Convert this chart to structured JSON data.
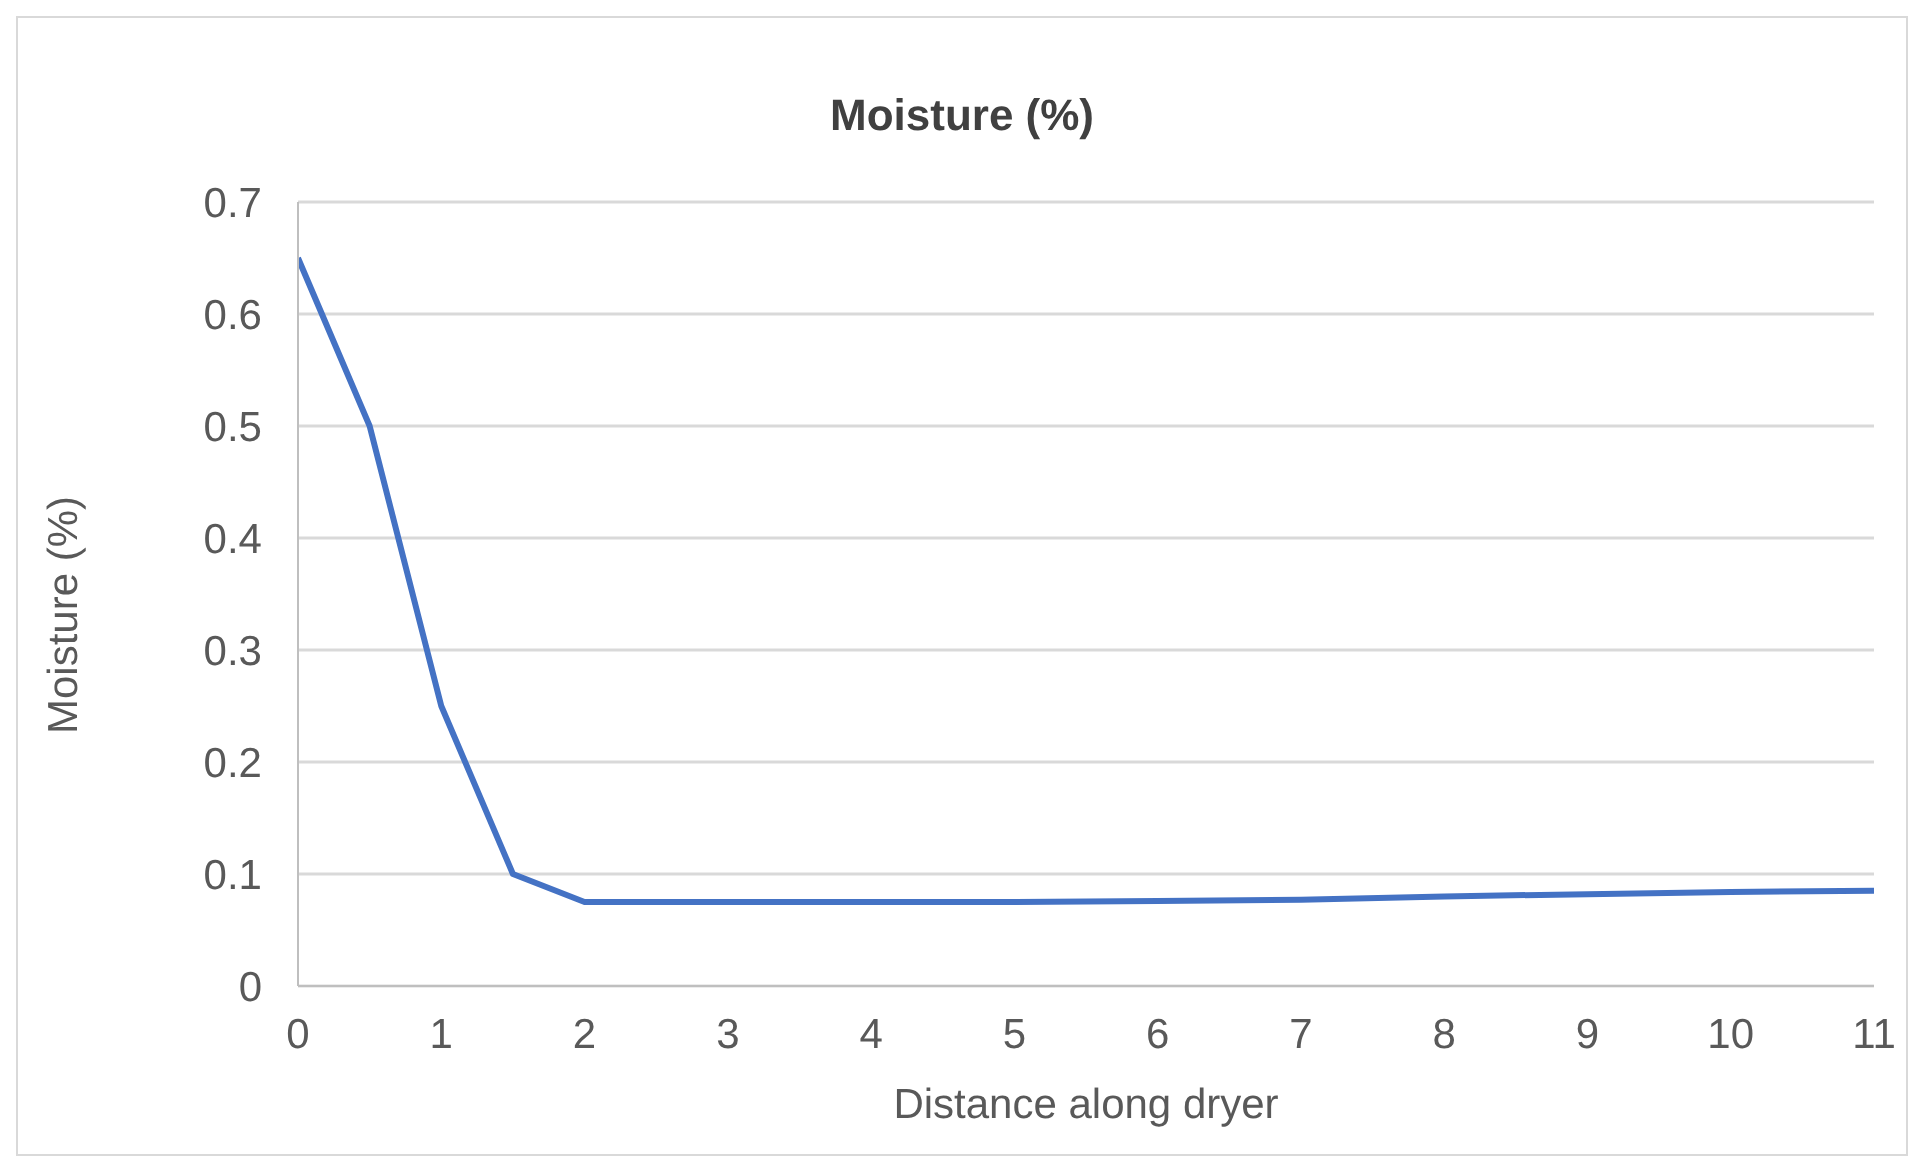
{
  "chart_data": {
    "type": "line",
    "title": "Moisture (%)",
    "xlabel": "Distance along dryer",
    "ylabel": "Moisture (%)",
    "x": [
      0,
      0.5,
      1,
      1.5,
      2,
      3,
      4,
      5,
      6,
      7,
      8,
      9,
      10,
      11
    ],
    "series": [
      {
        "color": "#4472c4",
        "values": [
          0.65,
          0.5,
          0.25,
          0.1,
          0.075,
          0.075,
          0.075,
          0.075,
          0.076,
          0.077,
          0.08,
          0.082,
          0.084,
          0.085
        ]
      }
    ],
    "xlim": [
      0,
      11
    ],
    "xticks": [
      0,
      1,
      2,
      3,
      4,
      5,
      6,
      7,
      8,
      9,
      10,
      11
    ],
    "ylim": [
      0,
      0.7
    ],
    "yticks": [
      0,
      0.1,
      0.2,
      0.3,
      0.4,
      0.5,
      0.6,
      0.7
    ],
    "grid": "y",
    "legend": false,
    "marker": "none",
    "line_style": "solid"
  }
}
